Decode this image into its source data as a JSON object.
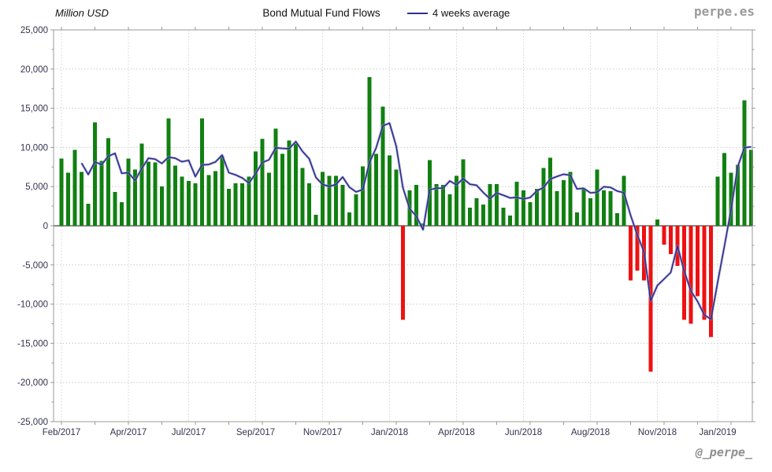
{
  "header": {
    "y_axis_title": "Million USD",
    "title": "Bond Mutual Fund Flows",
    "legend_label": "4 weeks average",
    "watermark_top": "perpe.es",
    "watermark_bottom": "@_perpe_"
  },
  "colors": {
    "positive_bar": "#118011",
    "negative_bar": "#ee1111",
    "average_line": "#30308f",
    "average_line_halo": "#9e9ecf",
    "grid": "#c9c9c9",
    "zero_line": "#444444",
    "plot_border": "#9a9a9a",
    "axis_text": "#33334d",
    "tick": "#9a9a9a"
  },
  "chart_data": {
    "type": "bar",
    "title": "Bond Mutual Fund Flows",
    "ylabel": "Million USD",
    "ylim": [
      -25000,
      25000
    ],
    "y_tick_step": 5000,
    "grid": true,
    "legend_position": "top",
    "frequency": "weekly",
    "series": [
      {
        "name": "Weekly bond mutual fund flows (Million USD)",
        "type": "bar",
        "values": [
          8600,
          6800,
          9700,
          6900,
          2800,
          13200,
          8300,
          11200,
          4300,
          3000,
          8600,
          7200,
          10500,
          8200,
          8100,
          5000,
          13700,
          7700,
          6300,
          5700,
          5400,
          13700,
          6500,
          7000,
          8900,
          4700,
          5400,
          5400,
          6300,
          9500,
          11100,
          6800,
          12400,
          9200,
          10900,
          10500,
          7400,
          5400,
          1400,
          6900,
          6400,
          6400,
          5200,
          1700,
          4000,
          7600,
          19000,
          9200,
          15200,
          9000,
          7200,
          -12000,
          4500,
          5200,
          300,
          8400,
          5300,
          5200,
          4000,
          6400,
          8500,
          2300,
          3500,
          2700,
          5300,
          5300,
          2300,
          1300,
          5600,
          4500,
          3000,
          4700,
          7400,
          8700,
          4400,
          5800,
          6900,
          1700,
          4700,
          3500,
          7200,
          4500,
          4400,
          1600,
          6400,
          -7000,
          -5700,
          -7000,
          -18600,
          800,
          -2400,
          -3600,
          -5100,
          -12000,
          -12500,
          -9000,
          -12000,
          -14200,
          6300,
          9300,
          6800,
          7800,
          16000,
          9700
        ]
      },
      {
        "name": "4 weeks average",
        "type": "line",
        "derived_from": "trailing mean of last 4 weekly values",
        "window": 4
      }
    ],
    "x_ticks": [
      {
        "week": 1,
        "label": "Feb/2017"
      },
      {
        "week": 11,
        "label": "Apr/2017"
      },
      {
        "week": 20,
        "label": "Jul/2017"
      },
      {
        "week": 30,
        "label": "Sep/2017"
      },
      {
        "week": 40,
        "label": "Nov/2017"
      },
      {
        "week": 50,
        "label": "Jan/2018"
      },
      {
        "week": 60,
        "label": "Apr/2018"
      },
      {
        "week": 70,
        "label": "Jun/2018"
      },
      {
        "week": 80,
        "label": "Aug/2018"
      },
      {
        "week": 90,
        "label": "Nov/2018"
      },
      {
        "week": 99,
        "label": "Jan/2019"
      }
    ]
  }
}
